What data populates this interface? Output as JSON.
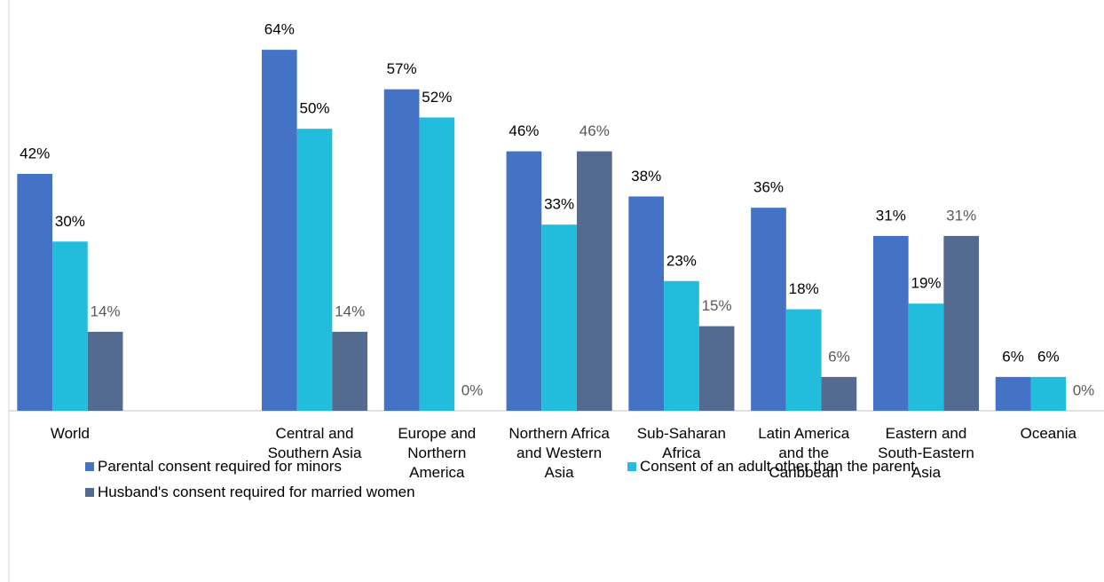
{
  "chart_data": {
    "type": "bar",
    "categories": [
      "World",
      null,
      "Central and Southern Asia",
      "Europe and Northern America",
      "Northern Africa and Western Asia",
      "Sub-Saharan Africa",
      "Latin America and the Caribbean",
      "Eastern and South-Eastern Asia",
      "Oceania"
    ],
    "series": [
      {
        "name": "Parental consent required for minors",
        "color": "#4472c4",
        "label_color": "#000000",
        "values": [
          42,
          null,
          64,
          57,
          46,
          38,
          36,
          31,
          6
        ],
        "value_labels": [
          "42%",
          null,
          "64%",
          "57%",
          "46%",
          "38%",
          "36%",
          "31%",
          "6%"
        ]
      },
      {
        "name": "Consent of an adult other than the parent",
        "color": "#22bcdc",
        "label_color": "#000000",
        "values": [
          30,
          null,
          50,
          52,
          33,
          23,
          18,
          19,
          6
        ],
        "value_labels": [
          "30%",
          null,
          "50%",
          "52%",
          "33%",
          "23%",
          "18%",
          "19%",
          "6%"
        ]
      },
      {
        "name": "Husband's consent required for married women",
        "color": "#546a8f",
        "label_color": "#595959",
        "values": [
          14,
          null,
          14,
          0,
          46,
          15,
          6,
          31,
          0
        ],
        "value_labels": [
          "14%",
          null,
          "14%",
          "0%",
          "46%",
          "15%",
          "6%",
          "31%",
          "0%"
        ]
      }
    ],
    "ylim": [
      0,
      70
    ],
    "legend": "bottom"
  }
}
